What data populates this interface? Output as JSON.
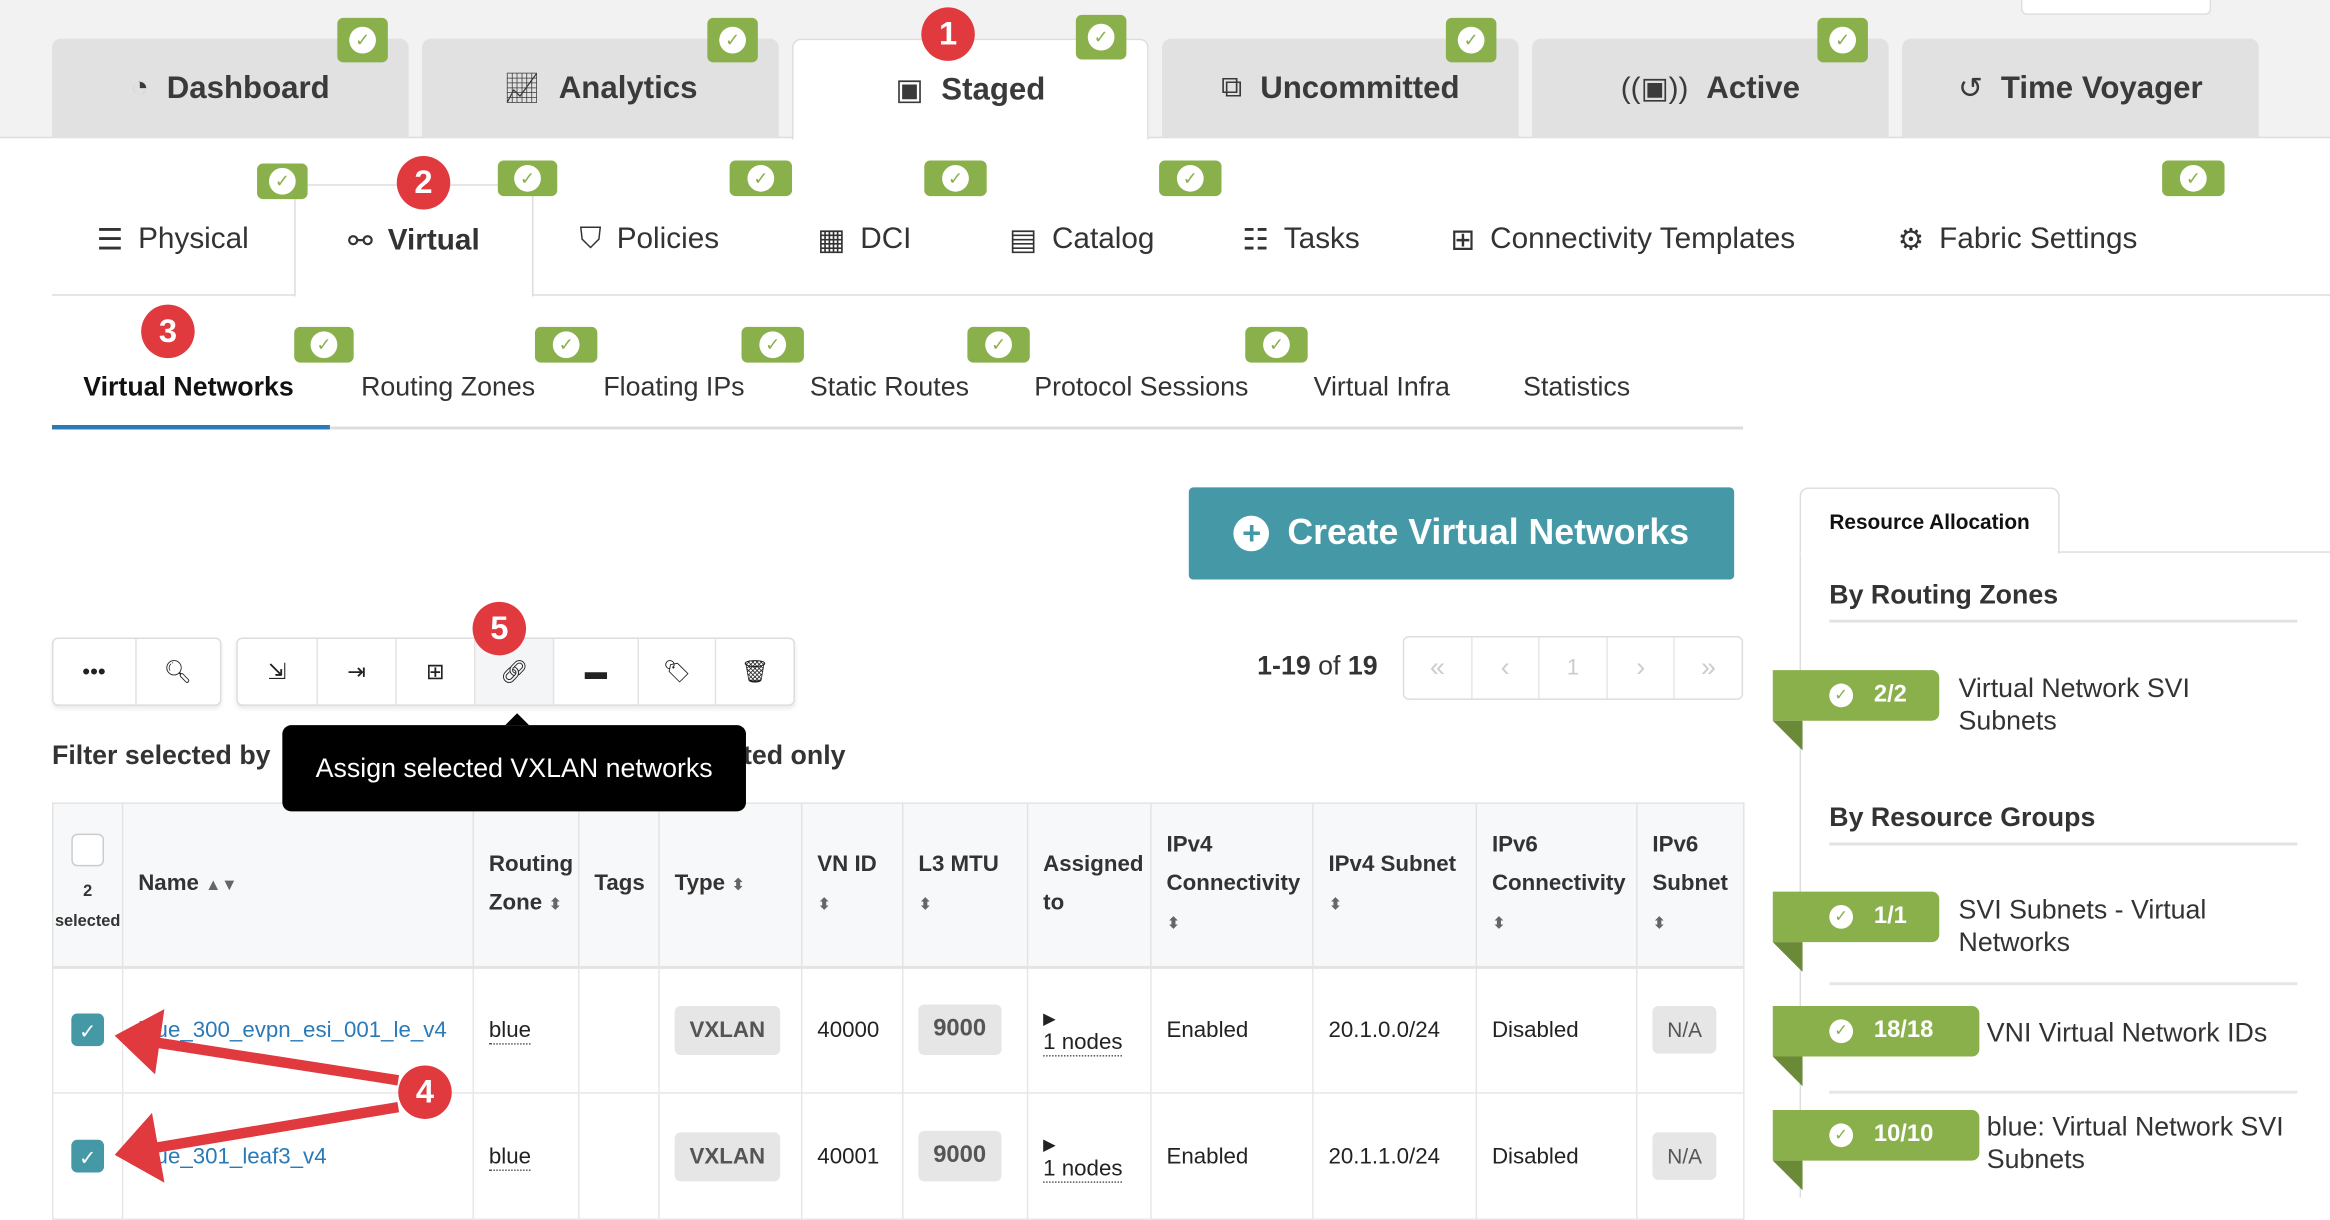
{
  "top_tabs": [
    {
      "label": "Dashboard",
      "icon": "gauge-icon"
    },
    {
      "label": "Analytics",
      "icon": "line-chart-icon"
    },
    {
      "label": "Staged",
      "icon": "staged-icon",
      "active": true
    },
    {
      "label": "Uncommitted",
      "icon": "uncommitted-icon"
    },
    {
      "label": "Active",
      "icon": "active-icon"
    },
    {
      "label": "Time Voyager",
      "icon": "history-icon"
    }
  ],
  "sub_tabs": [
    {
      "label": "Physical"
    },
    {
      "label": "Virtual",
      "active": true
    },
    {
      "label": "Policies"
    },
    {
      "label": "DCI"
    },
    {
      "label": "Catalog"
    },
    {
      "label": "Tasks"
    },
    {
      "label": "Connectivity Templates"
    },
    {
      "label": "Fabric Settings"
    }
  ],
  "virtual_tabs": [
    {
      "label": "Virtual Networks",
      "active": true
    },
    {
      "label": "Routing Zones"
    },
    {
      "label": "Floating IPs"
    },
    {
      "label": "Static Routes"
    },
    {
      "label": "Protocol Sessions"
    },
    {
      "label": "Virtual Infra"
    },
    {
      "label": "Statistics"
    }
  ],
  "annotations": [
    "1",
    "2",
    "3",
    "4",
    "5"
  ],
  "create_button": "Create Virtual Networks",
  "pagination": {
    "range": "1-19",
    "of": "of",
    "total": "19",
    "page": "1"
  },
  "filter_text_left": "Filter selected by",
  "filter_text_right": "ted only",
  "tooltip": "Assign selected VXLAN networks",
  "table": {
    "selected_count": "2",
    "selected_label": "selected",
    "headers": [
      "Name",
      "Routing Zone",
      "Tags",
      "Type",
      "VN ID",
      "L3 MTU",
      "Assigned to",
      "IPv4 Connectivity",
      "IPv4 Subnet",
      "IPv6 Connectivity",
      "IPv6 Subnet"
    ],
    "rows": [
      {
        "name": "blue_300_evpn_esi_001_le_v4",
        "zone": "blue",
        "tags": "",
        "type": "VXLAN",
        "vnid": "40000",
        "mtu": "9000",
        "assigned": "1 nodes",
        "ipv4c": "Enabled",
        "ipv4s": "20.1.0.0/24",
        "ipv6c": "Disabled",
        "ipv6s": "N/A",
        "checked": true
      },
      {
        "name": "blue_301_leaf3_v4",
        "zone": "blue",
        "tags": "",
        "type": "VXLAN",
        "vnid": "40001",
        "mtu": "9000",
        "assigned": "1 nodes",
        "ipv4c": "Enabled",
        "ipv4s": "20.1.1.0/24",
        "ipv6c": "Disabled",
        "ipv6s": "N/A",
        "checked": true
      }
    ]
  },
  "resource_panel": {
    "tab": "Resource Allocation",
    "by_routing_zones": "By Routing Zones",
    "by_resource_groups": "By Resource Groups",
    "items": [
      {
        "count": "2/2",
        "label": "Virtual Network SVI Subnets"
      },
      {
        "count": "1/1",
        "label": "SVI Subnets - Virtual Networks"
      },
      {
        "count": "18/18",
        "label": "VNI Virtual Network IDs"
      },
      {
        "count": "10/10",
        "label": "blue: Virtual Network SVI Subnets"
      }
    ]
  },
  "colors": {
    "accent": "#4598a5",
    "ok": "#8ab04c",
    "annotation": "#e0393e"
  }
}
